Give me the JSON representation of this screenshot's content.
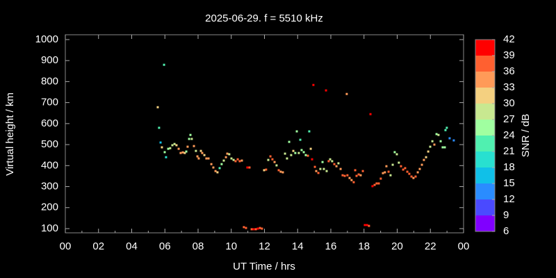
{
  "chart_data": {
    "type": "scatter",
    "title": "2025-06-29. f = 5510 kHz",
    "xlabel": "UT Time / hrs",
    "ylabel": "Virtual height / km",
    "colorbar_label": "SNR / dB",
    "x": [
      5.57,
      5.65,
      5.74,
      5.82,
      5.95,
      5.99,
      6.07,
      6.2,
      6.32,
      6.45,
      6.58,
      6.7,
      6.83,
      6.95,
      7.08,
      7.2,
      7.29,
      7.37,
      7.46,
      7.54,
      7.62,
      7.75,
      7.87,
      7.96,
      8.04,
      8.17,
      8.25,
      8.38,
      8.5,
      8.63,
      8.8,
      8.92,
      9.05,
      9.17,
      9.3,
      9.42,
      9.55,
      9.68,
      9.76,
      9.88,
      10.01,
      10.14,
      10.26,
      10.39,
      10.51,
      10.64,
      10.76,
      10.89,
      10.97,
      11.1,
      11.23,
      11.35,
      11.48,
      11.6,
      11.73,
      11.85,
      11.98,
      12.1,
      12.23,
      12.36,
      12.48,
      12.61,
      12.73,
      12.86,
      12.98,
      13.11,
      13.24,
      13.36,
      13.49,
      13.61,
      13.74,
      13.86,
      13.95,
      14.07,
      14.16,
      14.24,
      14.37,
      14.49,
      14.62,
      14.7,
      14.79,
      14.87,
      14.95,
      15.04,
      15.12,
      15.25,
      15.37,
      15.5,
      15.58,
      15.71,
      15.75,
      15.87,
      15.96,
      16.08,
      16.21,
      16.34,
      16.46,
      16.59,
      16.71,
      16.84,
      16.96,
      17.0,
      17.13,
      17.25,
      17.38,
      17.47,
      17.55,
      17.68,
      17.8,
      17.93,
      18.05,
      18.18,
      18.3,
      18.39,
      18.51,
      18.64,
      18.76,
      18.89,
      19.01,
      19.14,
      19.26,
      19.35,
      19.48,
      19.6,
      19.73,
      19.85,
      19.98,
      20.1,
      20.23,
      20.36,
      20.48,
      20.61,
      20.73,
      20.86,
      20.98,
      21.11,
      21.24,
      21.36,
      21.49,
      21.61,
      21.74,
      21.87,
      21.99,
      22.12,
      22.24,
      22.37,
      22.49,
      22.62,
      22.74,
      22.87,
      22.91,
      22.99,
      23.16,
      23.41
    ],
    "values": [
      678,
      580,
      510,
      487,
      880,
      464,
      440,
      480,
      483,
      497,
      503,
      497,
      480,
      460,
      463,
      460,
      467,
      490,
      527,
      546,
      527,
      493,
      470,
      444,
      434,
      470,
      460,
      450,
      434,
      434,
      407,
      391,
      374,
      368,
      388,
      407,
      424,
      440,
      457,
      454,
      434,
      427,
      421,
      430,
      421,
      424,
      107,
      103,
      391,
      391,
      97,
      97,
      97,
      100,
      103,
      100,
      378,
      381,
      427,
      444,
      430,
      417,
      401,
      378,
      371,
      368,
      457,
      434,
      513,
      450,
      470,
      460,
      563,
      460,
      523,
      474,
      464,
      450,
      447,
      563,
      480,
      430,
      784,
      394,
      374,
      365,
      384,
      417,
      384,
      758,
      374,
      421,
      430,
      421,
      407,
      397,
      411,
      384,
      354,
      351,
      741,
      354,
      341,
      331,
      321,
      378,
      351,
      358,
      354,
      374,
      117,
      117,
      113,
      645,
      302,
      308,
      315,
      315,
      338,
      364,
      368,
      397,
      371,
      354,
      404,
      464,
      454,
      414,
      397,
      381,
      388,
      371,
      361,
      348,
      341,
      348,
      368,
      384,
      404,
      427,
      440,
      467,
      490,
      516,
      500,
      550,
      546,
      516,
      487,
      487,
      569,
      580,
      530,
      520
    ],
    "snr": [
      31,
      21,
      15,
      30,
      22,
      24,
      18,
      24,
      27,
      28,
      27,
      30,
      33,
      34,
      34,
      31,
      24,
      35,
      24,
      24,
      28,
      33,
      29,
      34,
      33,
      30,
      33,
      31,
      33,
      34,
      34,
      34,
      33,
      31,
      21,
      24,
      28,
      33,
      35,
      29,
      28,
      29,
      36,
      36,
      36,
      34,
      36,
      36,
      39,
      36,
      36,
      39,
      36,
      39,
      36,
      36,
      30,
      36,
      27,
      36,
      36,
      34,
      29,
      36,
      34,
      34,
      27,
      27,
      24,
      28,
      30,
      24,
      24,
      27,
      21,
      24,
      24,
      24,
      36,
      21,
      30,
      39,
      39,
      36,
      34,
      36,
      29,
      24,
      28,
      39,
      27,
      36,
      29,
      29,
      36,
      34,
      29,
      33,
      36,
      36,
      33,
      36,
      35,
      33,
      36,
      36,
      36,
      36,
      34,
      36,
      39,
      39,
      36,
      39,
      39,
      36,
      36,
      36,
      36,
      33,
      33,
      34,
      36,
      27,
      27,
      24,
      27,
      27,
      36,
      36,
      36,
      36,
      36,
      36,
      34,
      36,
      33,
      34,
      34,
      33,
      31,
      31,
      27,
      27,
      34,
      24,
      27,
      24,
      24,
      24,
      21,
      21,
      12,
      12
    ],
    "xlim": [
      0,
      24
    ],
    "xticks": [
      {
        "value": 0,
        "label": "00"
      },
      {
        "value": 2,
        "label": "02"
      },
      {
        "value": 4,
        "label": "04"
      },
      {
        "value": 6,
        "label": "06"
      },
      {
        "value": 8,
        "label": "08"
      },
      10,
      12,
      14,
      16,
      18,
      20,
      22,
      {
        "value": 24,
        "label": "00"
      }
    ],
    "ylim": [
      80,
      1023
    ],
    "yticks": [
      100,
      200,
      300,
      400,
      500,
      600,
      700,
      800,
      900,
      1000
    ],
    "colorbar": {
      "clim": [
        6,
        42
      ],
      "ticks": [
        6,
        9,
        12,
        15,
        18,
        21,
        24,
        27,
        30,
        33,
        36,
        39,
        42
      ],
      "colors": [
        "#8000ff",
        "#4a4aff",
        "#2a8cff",
        "#10c0e8",
        "#28e0d0",
        "#50f0b0",
        "#a0ffa0",
        "#c8e890",
        "#f4d080",
        "#ff9a58",
        "#ff6030",
        "#ff0000"
      ]
    }
  }
}
